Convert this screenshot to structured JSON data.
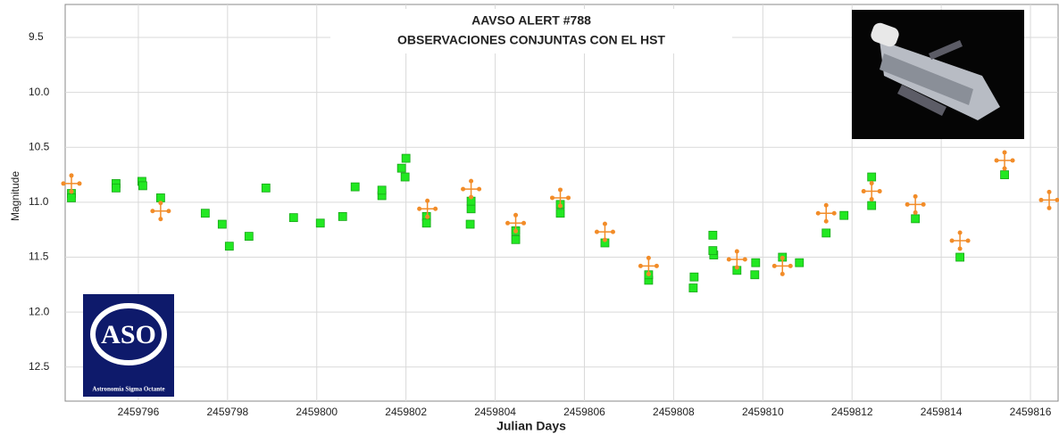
{
  "chart_data": {
    "type": "scatter",
    "title": [
      "AAVSO ALERT #788",
      "OBSERVACIONES CONJUNTAS CON EL HST"
    ],
    "x_label": "Julian Days",
    "y_label": "Magnitude",
    "xlim": [
      2459794.36,
      2459816.62
    ],
    "xticks": [
      2459796,
      2459798,
      2459800,
      2459802,
      2459804,
      2459806,
      2459808,
      2459810,
      2459812,
      2459814,
      2459816
    ],
    "ylim": [
      9.2,
      12.81
    ],
    "invert_y": true,
    "yticks": [
      9.5,
      {
        "value": 10,
        "label": "10.0"
      },
      10.5,
      {
        "value": 11,
        "label": "11.0"
      },
      11.5,
      {
        "value": 12,
        "label": "12.0"
      },
      12.5
    ],
    "grid": true,
    "series": [
      {
        "color": "#22e822",
        "marker": "square",
        "x": [
          2459794.5,
          2459794.5,
          2459795.5,
          2459795.5,
          2459796.08,
          2459796.1,
          2459796.5,
          2459797.5,
          2459797.88,
          2459798.04,
          2459798.48,
          2459798.86,
          2459799.48,
          2459800.08,
          2459800.58,
          2459800.86,
          2459801.46,
          2459801.46,
          2459801.9,
          2459802.0,
          2459801.98,
          2459802.46,
          2459802.46,
          2459803.44,
          2459803.46,
          2459803.46,
          2459804.46,
          2459804.46,
          2459805.46,
          2459805.46,
          2459806.46,
          2459807.44,
          2459807.44,
          2459808.44,
          2459808.46,
          2459808.88,
          2459808.9,
          2459808.88,
          2459809.42,
          2459809.82,
          2459809.84,
          2459810.44,
          2459810.82,
          2459811.42,
          2459811.82,
          2459812.44,
          2459812.44,
          2459813.42,
          2459814.42,
          2459815.42
        ],
        "values": [
          10.92,
          10.96,
          10.83,
          10.87,
          10.81,
          10.85,
          10.96,
          11.1,
          11.2,
          11.4,
          11.31,
          10.87,
          11.14,
          11.19,
          11.13,
          10.86,
          10.94,
          10.89,
          10.69,
          10.6,
          10.77,
          11.13,
          11.19,
          11.2,
          11.06,
          10.99,
          11.26,
          11.34,
          11.02,
          11.1,
          11.37,
          11.71,
          11.66,
          11.78,
          11.68,
          11.3,
          11.48,
          11.44,
          11.62,
          11.66,
          11.55,
          11.5,
          11.55,
          11.28,
          11.12,
          11.03,
          10.77,
          11.15,
          11.5,
          10.75
        ]
      },
      {
        "color": "#f28c28",
        "marker": "cross",
        "x": [
          2459794.5,
          2459796.5,
          2459802.48,
          2459803.46,
          2459804.46,
          2459805.46,
          2459806.46,
          2459807.44,
          2459809.42,
          2459810.44,
          2459811.42,
          2459812.44,
          2459813.42,
          2459814.42,
          2459815.42,
          2459816.42
        ],
        "values": [
          10.83,
          11.08,
          11.06,
          10.88,
          11.19,
          10.96,
          11.27,
          11.58,
          11.52,
          11.58,
          11.1,
          10.9,
          11.02,
          11.35,
          10.62,
          10.98
        ]
      }
    ]
  },
  "logo": {
    "mark": "ASO",
    "caption": "Astronomía Sigma Octante"
  }
}
